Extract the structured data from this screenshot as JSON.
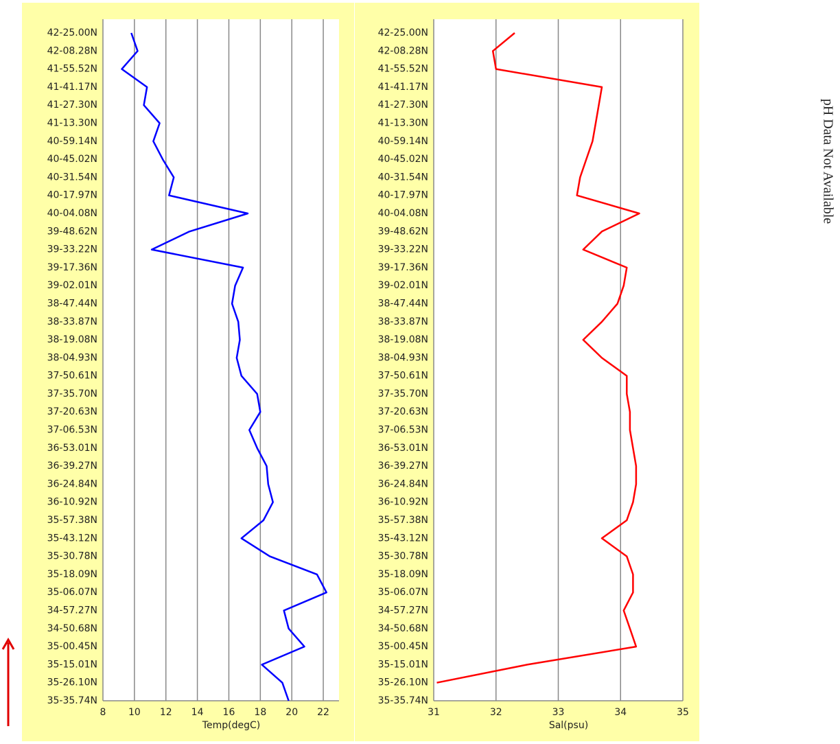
{
  "chart_data": [
    {
      "type": "line",
      "orientation": "horizontal",
      "x_label": "Temp(degC)",
      "color": "#0000ff",
      "grid": true,
      "categories": [
        "42-25.00N",
        "42-08.28N",
        "41-55.52N",
        "41-41.17N",
        "41-27.30N",
        "41-13.30N",
        "40-59.14N",
        "40-45.02N",
        "40-31.54N",
        "40-17.97N",
        "40-04.08N",
        "39-48.62N",
        "39-33.22N",
        "39-17.36N",
        "39-02.01N",
        "38-47.44N",
        "38-33.87N",
        "38-19.08N",
        "38-04.93N",
        "37-50.61N",
        "37-35.70N",
        "37-20.63N",
        "37-06.53N",
        "36-53.01N",
        "36-39.27N",
        "36-24.84N",
        "36-10.92N",
        "35-57.38N",
        "35-43.12N",
        "35-30.78N",
        "35-18.09N",
        "35-06.07N",
        "34-57.27N",
        "34-50.68N",
        "35-00.45N",
        "35-15.01N",
        "35-26.10N",
        "35-35.74N"
      ],
      "values": [
        9.8,
        10.2,
        9.2,
        10.8,
        10.6,
        11.6,
        11.2,
        11.8,
        12.5,
        12.2,
        17.2,
        13.5,
        11.1,
        16.9,
        16.4,
        16.2,
        16.6,
        16.7,
        16.5,
        16.8,
        17.8,
        18.0,
        17.3,
        17.8,
        18.4,
        18.5,
        18.8,
        18.2,
        16.8,
        18.6,
        21.6,
        22.2,
        19.5,
        19.8,
        20.8,
        18.1,
        19.4,
        19.8
      ],
      "xlim": [
        8,
        23
      ],
      "xticks": [
        8,
        10,
        12,
        14,
        16,
        18,
        20,
        22
      ]
    },
    {
      "type": "line",
      "orientation": "horizontal",
      "x_label": "Sal(psu)",
      "color": "#ff0000",
      "grid": true,
      "categories": [
        "42-25.00N",
        "42-08.28N",
        "41-55.52N",
        "41-41.17N",
        "41-27.30N",
        "41-13.30N",
        "40-59.14N",
        "40-45.02N",
        "40-31.54N",
        "40-17.97N",
        "40-04.08N",
        "39-48.62N",
        "39-33.22N",
        "39-17.36N",
        "39-02.01N",
        "38-47.44N",
        "38-33.87N",
        "38-19.08N",
        "38-04.93N",
        "37-50.61N",
        "37-35.70N",
        "37-20.63N",
        "37-06.53N",
        "36-53.01N",
        "36-39.27N",
        "36-24.84N",
        "36-10.92N",
        "35-57.38N",
        "35-43.12N",
        "35-30.78N",
        "35-18.09N",
        "35-06.07N",
        "34-57.27N",
        "34-50.68N",
        "35-00.45N",
        "35-15.01N",
        "35-26.10N",
        "35-35.74N"
      ],
      "values": [
        32.3,
        31.95,
        32.0,
        33.7,
        33.65,
        33.6,
        33.55,
        33.45,
        33.35,
        33.3,
        34.3,
        33.7,
        33.4,
        34.1,
        34.05,
        33.95,
        33.7,
        33.4,
        33.7,
        34.1,
        34.1,
        34.15,
        34.15,
        34.2,
        34.25,
        34.25,
        34.2,
        34.1,
        33.7,
        34.1,
        34.2,
        34.2,
        34.05,
        34.15,
        34.25,
        32.5,
        31.05,
        null
      ],
      "xlim": [
        31,
        35
      ],
      "xticks": [
        31,
        32,
        33,
        34,
        35
      ]
    }
  ],
  "ph_note": "pH Data Not Available"
}
